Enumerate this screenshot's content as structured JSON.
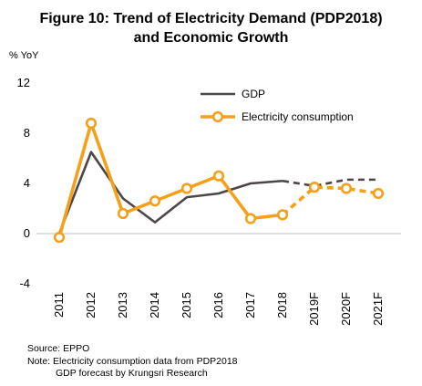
{
  "title_lines": [
    "Figure 10: Trend of Electricity Demand (PDP2018)",
    "and Economic Growth"
  ],
  "chart_data": {
    "type": "line",
    "title": "Figure 10: Trend of Electricity Demand (PDP2018) and Economic Growth",
    "ylabel": "% YoY",
    "ylim": [
      -4,
      12
    ],
    "yticks": [
      -4,
      0,
      4,
      8,
      12
    ],
    "categories": [
      "2011",
      "2012",
      "2013",
      "2014",
      "2015",
      "2016",
      "2017",
      "2018",
      "2019F",
      "2020F",
      "2021F"
    ],
    "forecast_start_index": 8,
    "grid": false,
    "legend": "top-right",
    "series": [
      {
        "name": "GDP",
        "color": "#4d4548",
        "marker": "none",
        "values": [
          0.0,
          6.5,
          2.8,
          0.9,
          2.9,
          3.2,
          4.0,
          4.2,
          3.8,
          4.3,
          4.3
        ]
      },
      {
        "name": "Electricity consumption",
        "color": "#f5a01a",
        "marker": "circle",
        "values": [
          -0.3,
          8.8,
          1.6,
          2.6,
          3.6,
          4.6,
          1.2,
          1.5,
          3.7,
          3.6,
          3.2
        ]
      }
    ]
  },
  "footnotes": {
    "source": "Source: EPPO",
    "note1": "Note: Electricity consumption data from PDP2018",
    "note2": "GDP forecast by Krungsri Research"
  }
}
